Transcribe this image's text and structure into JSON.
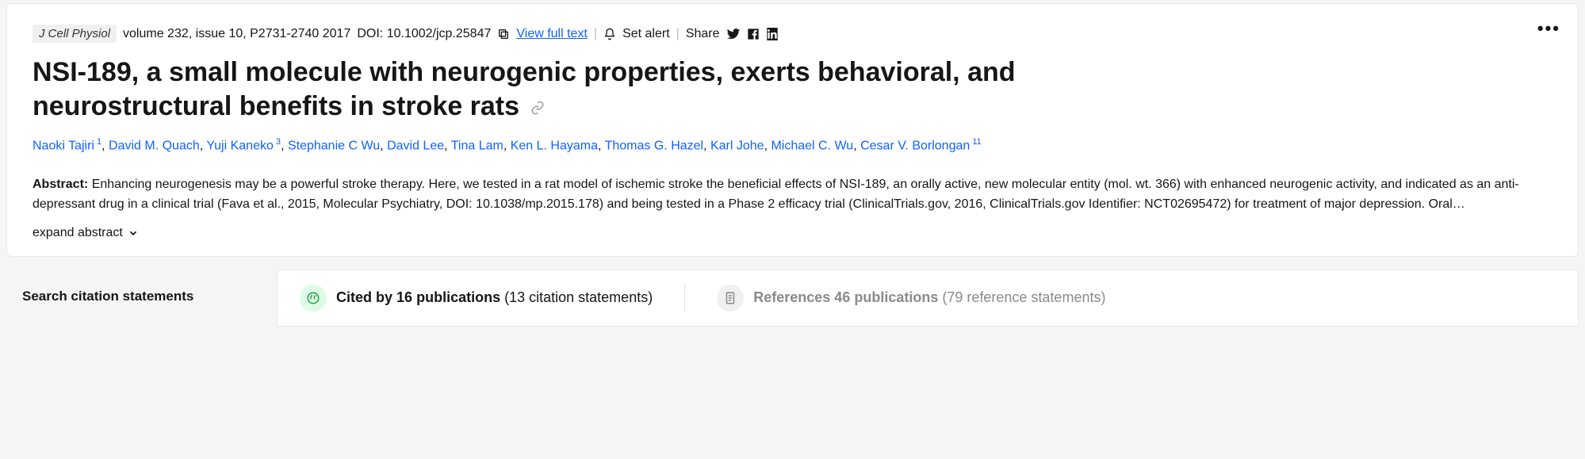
{
  "meta": {
    "journal": "J Cell Physiol",
    "volume_issue": "volume 232, issue 10, P2731-2740 2017",
    "doi_label": "DOI: 10.1002/jcp.25847",
    "view_full_text": "View full text",
    "set_alert": "Set alert",
    "share": "Share"
  },
  "title": "NSI-189, a small molecule with neurogenic properties, exerts behavioral, and neurostructural benefits in stroke rats",
  "authors": [
    {
      "name": "Naoki Tajiri",
      "sup": "1"
    },
    {
      "name": "David M. Quach",
      "sup": ""
    },
    {
      "name": "Yuji Kaneko",
      "sup": "3"
    },
    {
      "name": "Stephanie C Wu",
      "sup": ""
    },
    {
      "name": "David Lee",
      "sup": ""
    },
    {
      "name": "Tina Lam",
      "sup": ""
    },
    {
      "name": "Ken L. Hayama",
      "sup": ""
    },
    {
      "name": "Thomas G. Hazel",
      "sup": ""
    },
    {
      "name": "Karl Johe",
      "sup": ""
    },
    {
      "name": "Michael C. Wu",
      "sup": ""
    },
    {
      "name": "Cesar V. Borlongan",
      "sup": "11"
    }
  ],
  "abstract": {
    "label": "Abstract:",
    "text": "Enhancing neurogenesis may be a powerful stroke therapy. Here, we tested in a rat model of ischemic stroke the beneficial effects of NSI-189, an orally active, new molecular entity (mol. wt. 366) with enhanced neurogenic activity, and indicated as an anti-depressant drug in a clinical trial (Fava et al., 2015, Molecular Psychiatry, DOI: 10.1038/mp.2015.178) and being tested in a Phase 2 efficacy trial (ClinicalTrials.gov, 2016, ClinicalTrials.gov Identifier: NCT02695472) for treatment of major depression. Oral…",
    "expand": "expand abstract"
  },
  "search": {
    "label": "Search citation statements"
  },
  "tabs": {
    "cited": {
      "prefix": "Cited by",
      "count": "16",
      "suffix": "publications",
      "sub": "(13 citation statements)"
    },
    "refs": {
      "prefix": "References",
      "count": "46",
      "suffix": "publications",
      "sub": "(79 reference statements)"
    }
  },
  "colors": {
    "link": "#0f62fe",
    "green_bg": "#defbe6",
    "green_stroke": "#24a148",
    "gray_icon": "#8a8a8a"
  }
}
